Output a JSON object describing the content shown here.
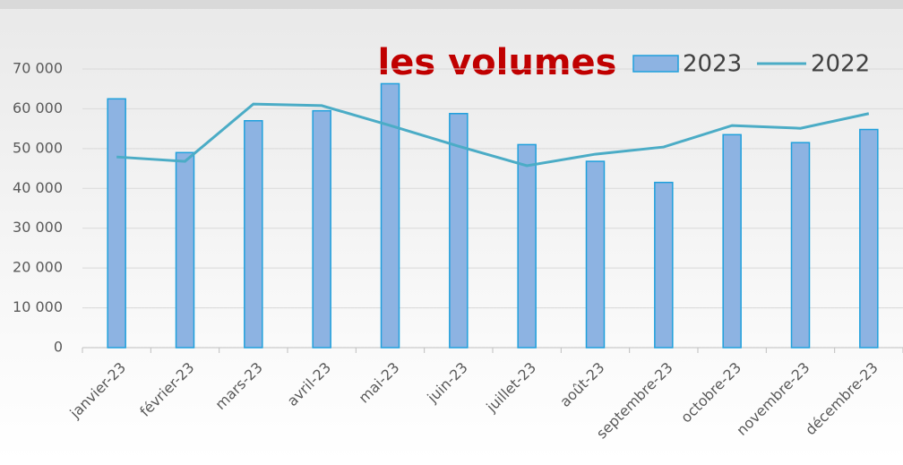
{
  "chart_data": {
    "type": "bar_line",
    "title": "les volumes",
    "categories": [
      "janvier-23",
      "février-23",
      "mars-23",
      "avril-23",
      "mai-23",
      "juin-23",
      "juillet-23",
      "août-23",
      "septembre-23",
      "octobre-23",
      "novembre-23",
      "décembre-23"
    ],
    "series": [
      {
        "name": "2023",
        "type": "bar",
        "color": "#8db3e2",
        "values": [
          62500,
          49000,
          57000,
          59500,
          66300,
          58800,
          51000,
          46800,
          41500,
          53500,
          51500,
          54800
        ]
      },
      {
        "name": "2022",
        "type": "line",
        "color": "#4bacc6",
        "values": [
          47900,
          46800,
          61200,
          60800,
          55800,
          50600,
          45700,
          48600,
          50400,
          55800,
          55100,
          58800
        ]
      }
    ],
    "ylim": [
      0,
      70000
    ],
    "yticks": [
      {
        "value": 0,
        "label": "0"
      },
      {
        "value": 10000,
        "label": "10 000"
      },
      {
        "value": 20000,
        "label": "20 000"
      },
      {
        "value": 30000,
        "label": "30 000"
      },
      {
        "value": 40000,
        "label": "40 000"
      },
      {
        "value": 50000,
        "label": "50 000"
      },
      {
        "value": 60000,
        "label": "60 000"
      },
      {
        "value": 70000,
        "label": "70 000"
      }
    ],
    "grid": true,
    "legend": "top-right"
  }
}
